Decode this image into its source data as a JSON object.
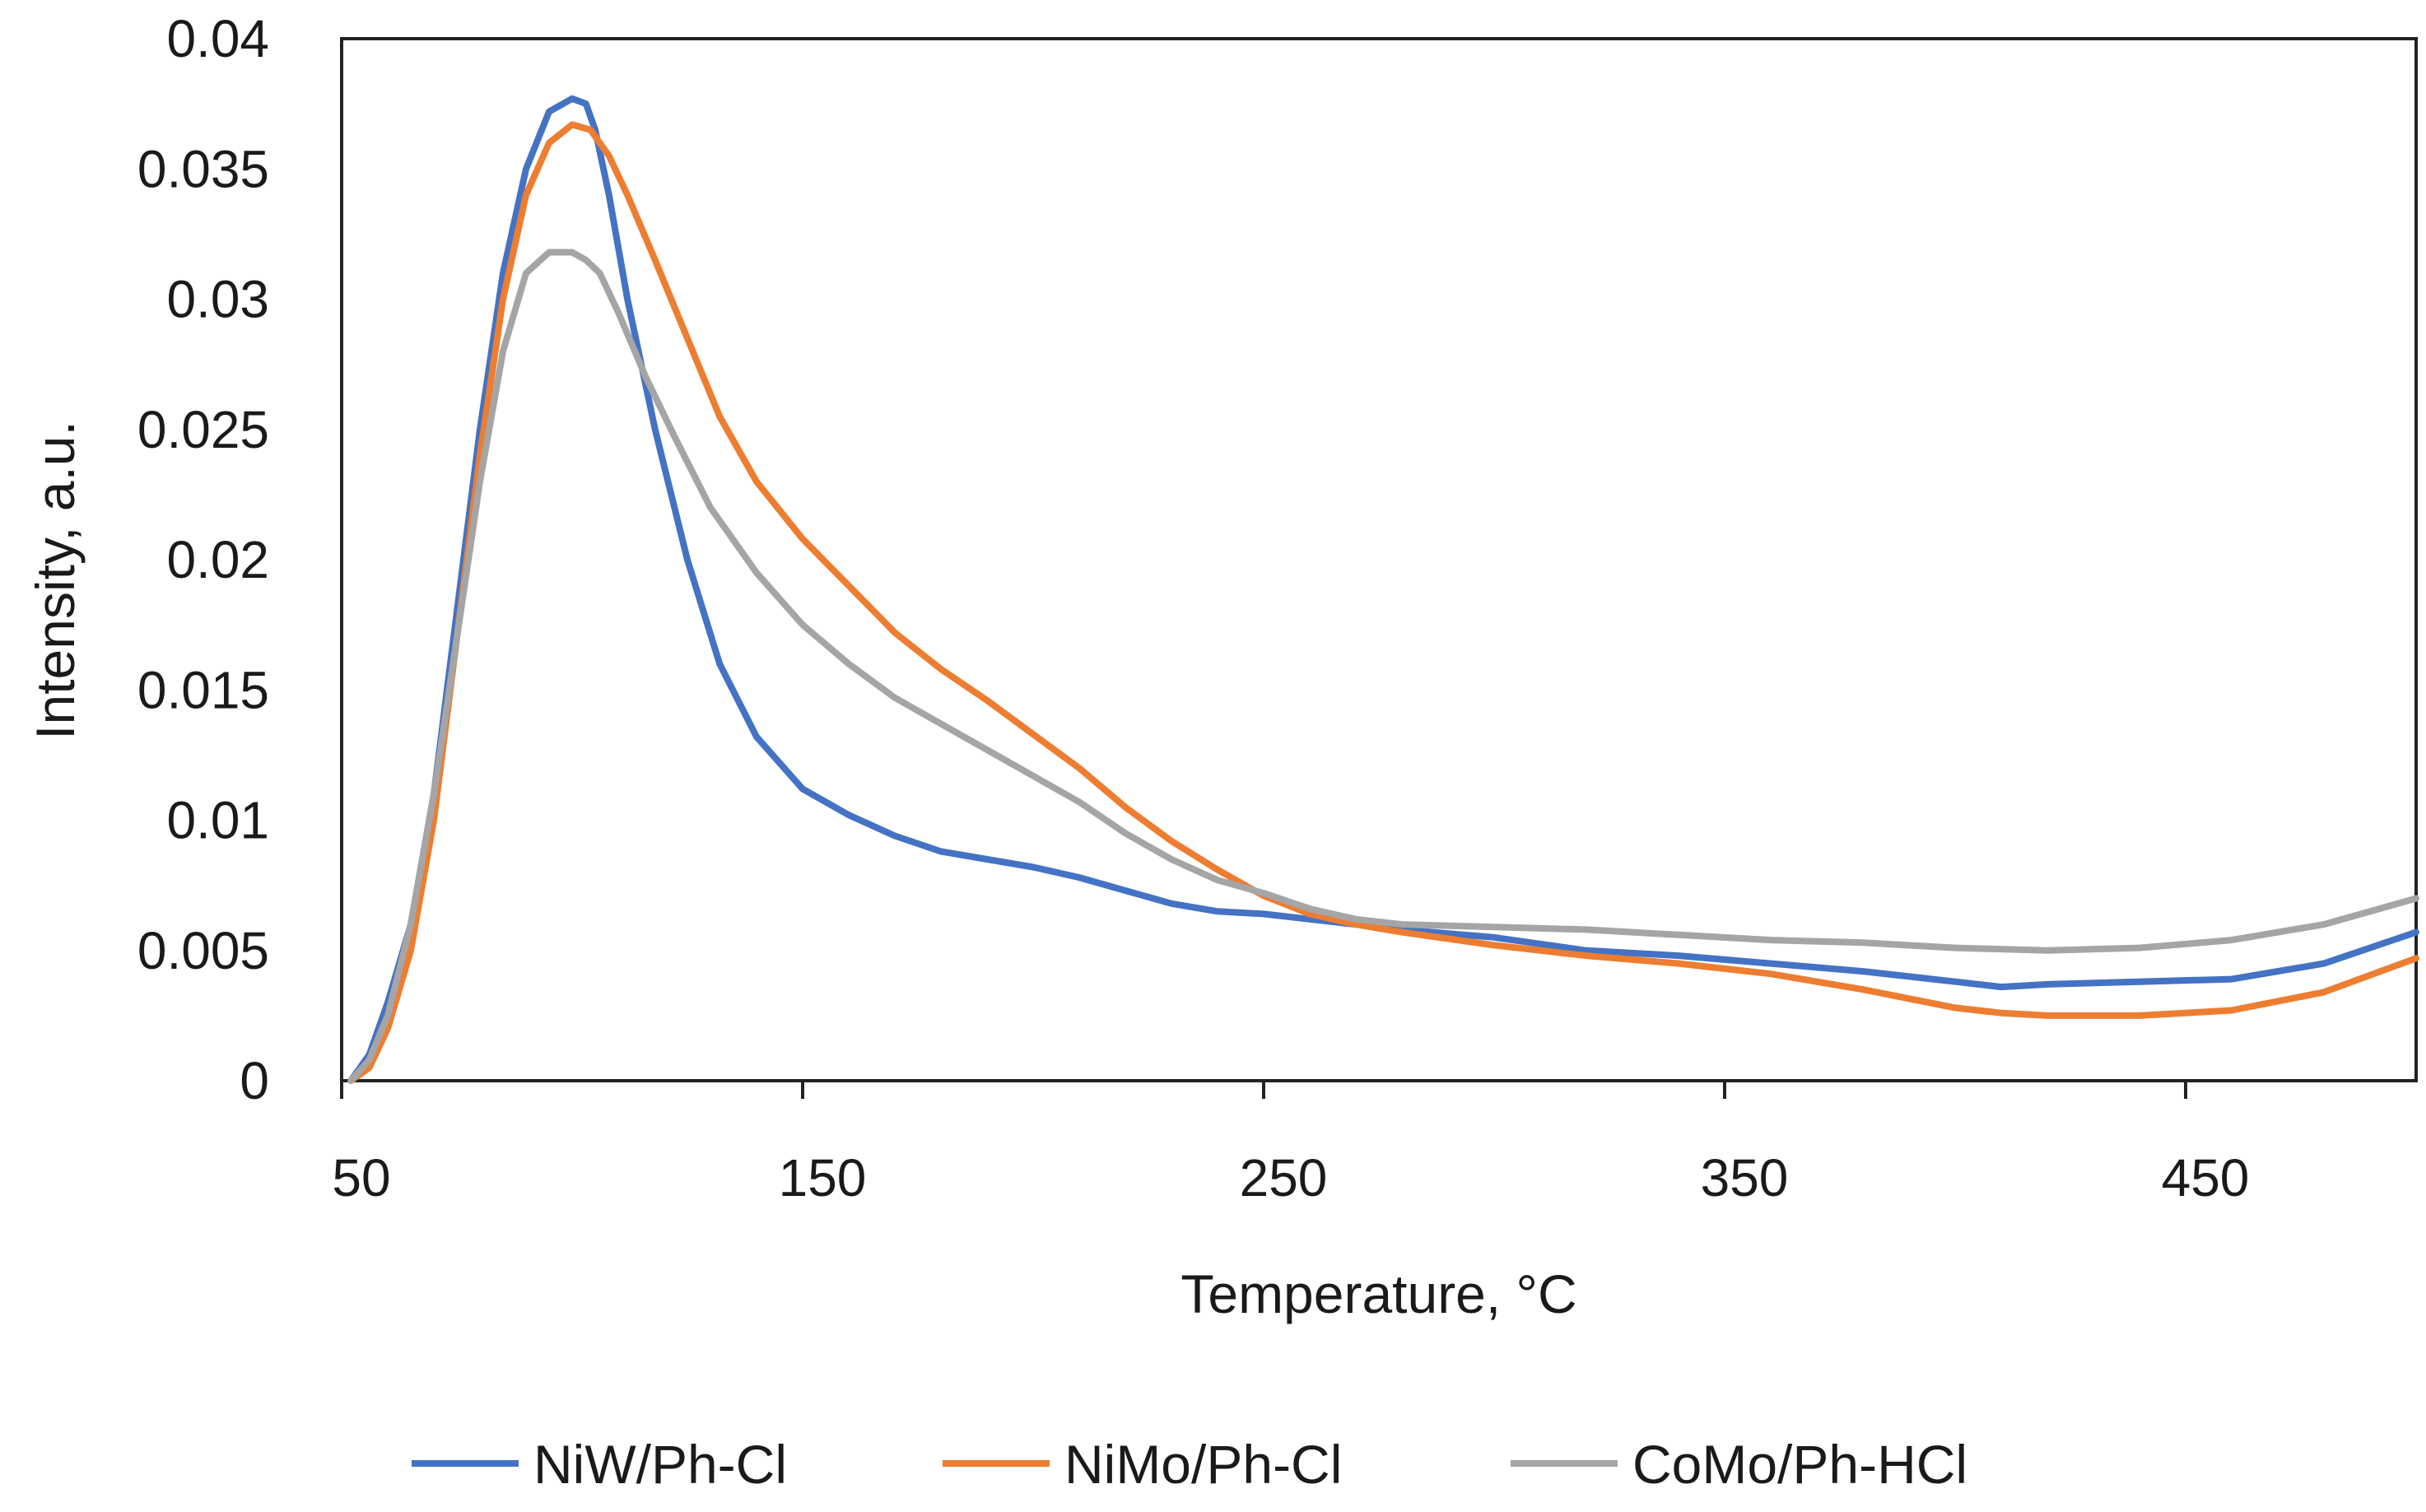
{
  "chart_data": {
    "type": "line",
    "title": "",
    "xlabel": "Temperature, °C",
    "ylabel": "Intensity, a.u.",
    "xlim": [
      50,
      500
    ],
    "ylim": [
      0,
      0.04
    ],
    "x_ticks": [
      50,
      150,
      250,
      350,
      450
    ],
    "x_tick_labels": [
      "50",
      "150",
      "250",
      "350",
      "450"
    ],
    "y_ticks": [
      0,
      0.005,
      0.01,
      0.015,
      0.02,
      0.025,
      0.03,
      0.035,
      0.04
    ],
    "y_tick_labels": [
      "0",
      "0.005",
      "0.01",
      "0.015",
      "0.02",
      "0.025",
      "0.03",
      "0.035",
      "0.04"
    ],
    "grid": false,
    "legend_position": "bottom",
    "series": [
      {
        "name": "NiW/Ph-Cl",
        "color": "#4472C4",
        "x": [
          52,
          56,
          60,
          65,
          70,
          75,
          80,
          85,
          90,
          95,
          100,
          103,
          105,
          108,
          112,
          118,
          125,
          132,
          140,
          150,
          160,
          170,
          180,
          190,
          200,
          210,
          220,
          230,
          240,
          250,
          260,
          270,
          280,
          300,
          320,
          340,
          360,
          380,
          400,
          410,
          420,
          440,
          460,
          480,
          500
        ],
        "y": [
          0,
          0.001,
          0.003,
          0.006,
          0.011,
          0.018,
          0.025,
          0.031,
          0.035,
          0.0372,
          0.0377,
          0.0375,
          0.0365,
          0.034,
          0.03,
          0.025,
          0.02,
          0.016,
          0.0132,
          0.0112,
          0.0102,
          0.0094,
          0.0088,
          0.0085,
          0.0082,
          0.0078,
          0.0073,
          0.0068,
          0.0065,
          0.0064,
          0.0062,
          0.006,
          0.0058,
          0.0055,
          0.005,
          0.0048,
          0.0045,
          0.0042,
          0.0038,
          0.0036,
          0.0037,
          0.0038,
          0.0039,
          0.0045,
          0.0057
        ]
      },
      {
        "name": "NiMo/Ph-Cl",
        "color": "#ED7D31",
        "x": [
          52,
          56,
          60,
          65,
          70,
          75,
          80,
          85,
          90,
          95,
          100,
          104,
          108,
          112,
          118,
          125,
          132,
          140,
          150,
          160,
          170,
          180,
          190,
          200,
          210,
          220,
          230,
          240,
          250,
          260,
          270,
          280,
          300,
          320,
          340,
          360,
          380,
          400,
          410,
          420,
          440,
          460,
          480,
          500
        ],
        "y": [
          0,
          0.0005,
          0.002,
          0.005,
          0.01,
          0.017,
          0.024,
          0.03,
          0.034,
          0.036,
          0.0367,
          0.0365,
          0.0355,
          0.034,
          0.0315,
          0.0285,
          0.0255,
          0.023,
          0.0208,
          0.019,
          0.0172,
          0.0158,
          0.0146,
          0.0133,
          0.012,
          0.0105,
          0.0092,
          0.0081,
          0.0071,
          0.0064,
          0.006,
          0.0057,
          0.0052,
          0.0048,
          0.0045,
          0.0041,
          0.0035,
          0.0028,
          0.0026,
          0.0025,
          0.0025,
          0.0027,
          0.0034,
          0.0047
        ]
      },
      {
        "name": "CoMo/Ph-HCl",
        "color": "#A5A5A5",
        "x": [
          52,
          56,
          60,
          65,
          70,
          75,
          80,
          85,
          90,
          95,
          100,
          103,
          106,
          110,
          116,
          122,
          130,
          140,
          150,
          160,
          170,
          180,
          190,
          200,
          210,
          220,
          230,
          240,
          250,
          260,
          270,
          280,
          300,
          320,
          340,
          360,
          380,
          400,
          420,
          440,
          460,
          480,
          500
        ],
        "y": [
          0,
          0.0008,
          0.0025,
          0.006,
          0.011,
          0.017,
          0.023,
          0.028,
          0.031,
          0.0318,
          0.0318,
          0.0315,
          0.031,
          0.0295,
          0.027,
          0.0248,
          0.022,
          0.0195,
          0.0175,
          0.016,
          0.0147,
          0.0137,
          0.0127,
          0.0117,
          0.0107,
          0.0095,
          0.0085,
          0.0077,
          0.0072,
          0.0066,
          0.0062,
          0.006,
          0.0059,
          0.0058,
          0.0056,
          0.0054,
          0.0053,
          0.0051,
          0.005,
          0.0051,
          0.0054,
          0.006,
          0.007
        ]
      }
    ]
  }
}
